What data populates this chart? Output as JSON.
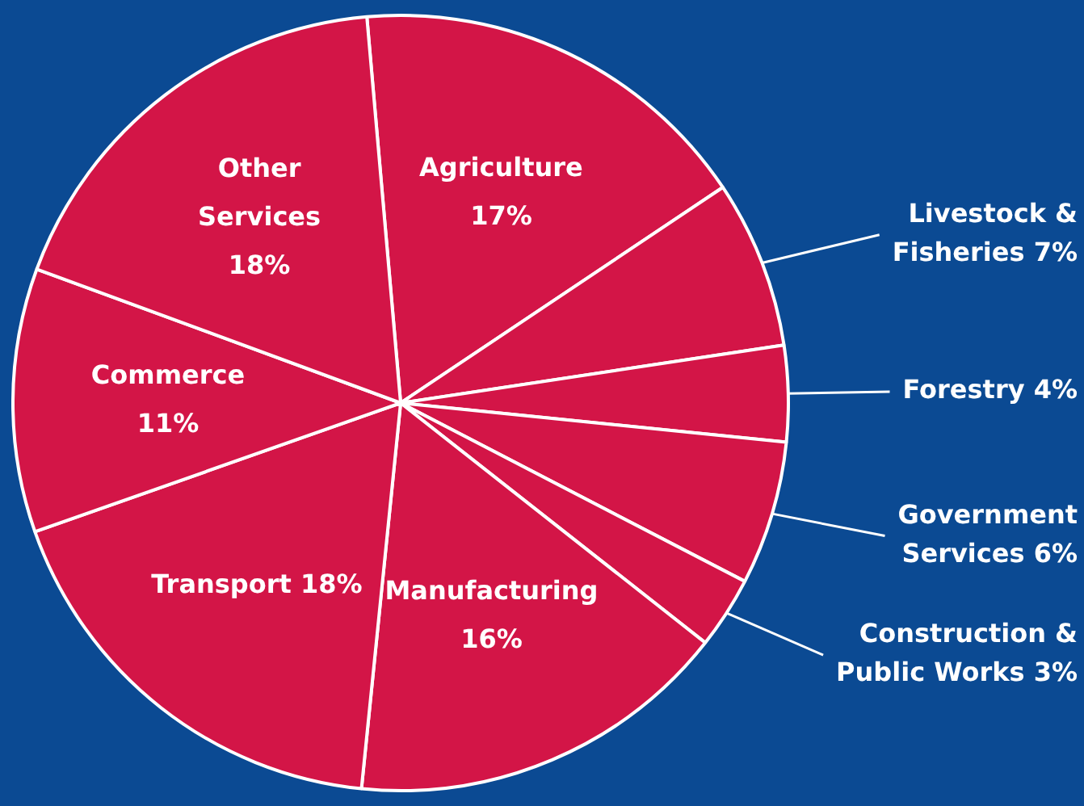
{
  "chart_data": {
    "type": "pie",
    "categories": [
      "Agriculture",
      "Livestock & Fisheries",
      "Forestry",
      "Government Services",
      "Construction & Public Works",
      "Manufacturing",
      "Transport",
      "Commerce",
      "Other Services"
    ],
    "values": [
      17,
      7,
      4,
      6,
      3,
      16,
      18,
      11,
      18
    ],
    "value_labels": [
      "17%",
      "7%",
      "4%",
      "6%",
      "3%",
      "16%",
      "18%",
      "11%",
      "18%"
    ],
    "colors": [
      "#d31547",
      "#d31547",
      "#d31547",
      "#d31547",
      "#d31547",
      "#d31547",
      "#d31547",
      "#d31547",
      "#d31547"
    ],
    "legend": false
  }
}
